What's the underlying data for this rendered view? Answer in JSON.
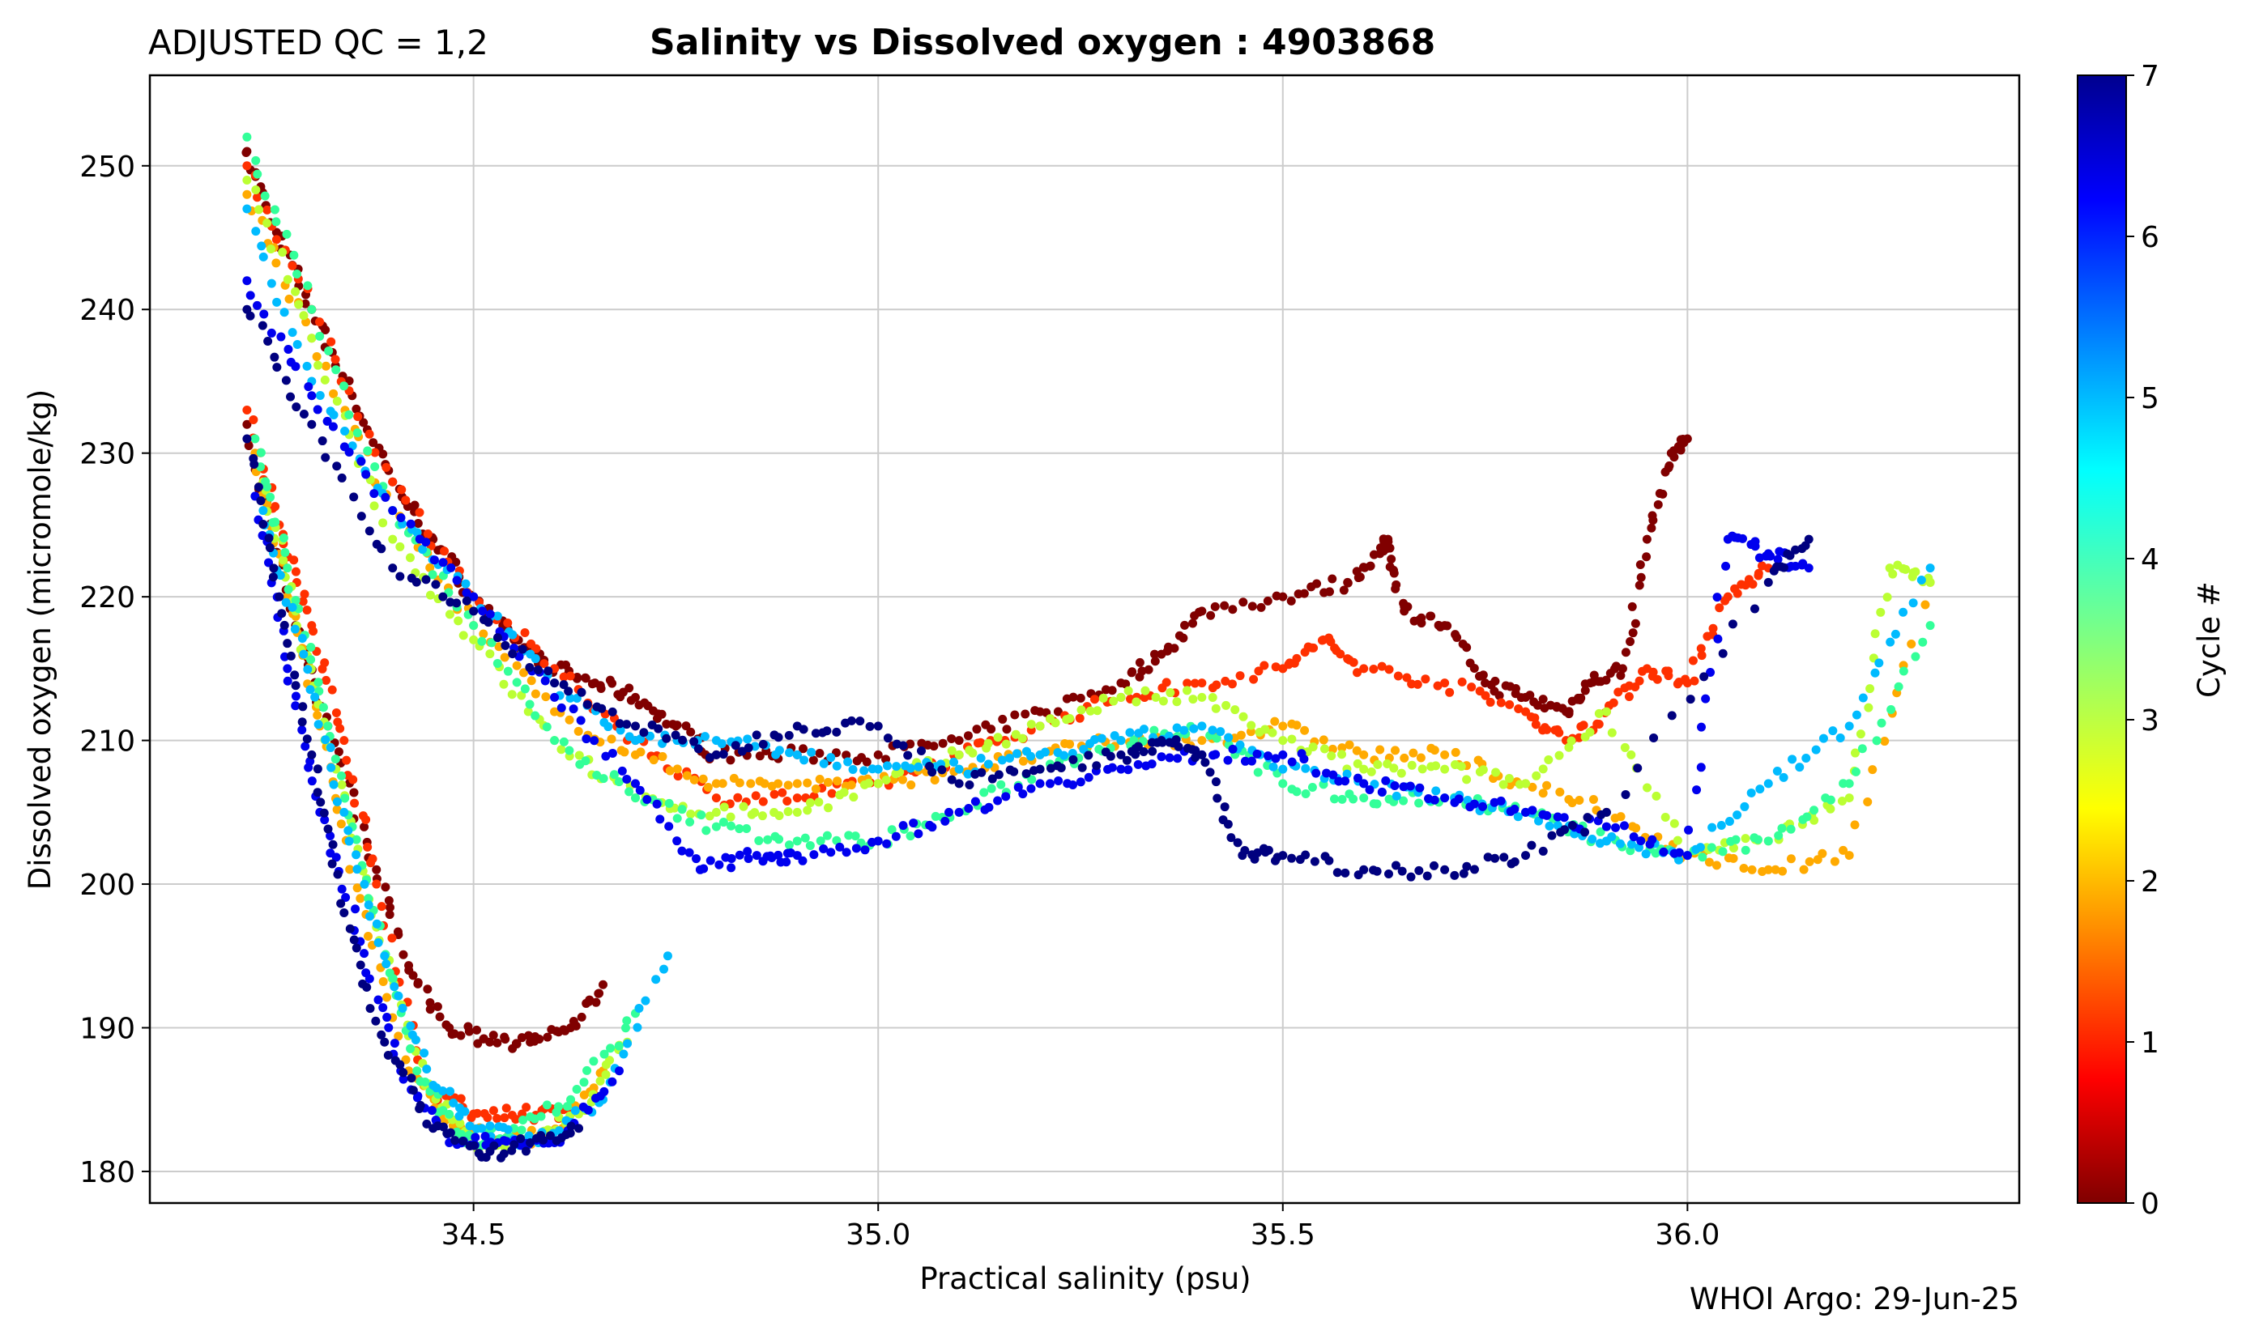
{
  "header": {
    "qc_label": "ADJUSTED QC = 1,2",
    "title": "Salinity vs Dissolved oxygen : 4903868"
  },
  "footer": {
    "credit": "WHOI Argo: 29-Jun-25"
  },
  "chart_data": {
    "type": "scatter",
    "title": "Salinity vs Dissolved oxygen : 4903868",
    "xlabel": "Practical salinity  (psu)",
    "ylabel": "Dissolved oxygen  (micromole/kg)",
    "xlim": [
      34.1,
      36.41
    ],
    "ylim": [
      177.8,
      256.3
    ],
    "xticks": [
      34.5,
      35.0,
      35.5,
      36.0
    ],
    "xtick_labels": [
      "34.5",
      "35.0",
      "35.5",
      "36.0"
    ],
    "yticks": [
      180,
      190,
      200,
      210,
      220,
      230,
      240,
      250
    ],
    "ytick_labels": [
      "180",
      "190",
      "200",
      "210",
      "220",
      "230",
      "240",
      "250"
    ],
    "grid": true,
    "colorbar": {
      "label": "Cycle #",
      "colormap": "jet (reversed)",
      "range": [
        0,
        7
      ],
      "ticks": [
        0,
        1,
        2,
        3,
        4,
        5,
        6,
        7
      ],
      "tick_labels": [
        "0",
        "1",
        "2",
        "3",
        "4",
        "5",
        "6",
        "7"
      ]
    },
    "series": [
      {
        "cycle": 0,
        "color": "#800000",
        "x": [
          34.22,
          34.25,
          34.3,
          34.35,
          34.4,
          34.45,
          34.5,
          34.55,
          34.6,
          34.65,
          34.7,
          34.75,
          34.8,
          34.9,
          35.0,
          35.1,
          35.2,
          35.3,
          35.35,
          35.4,
          35.5,
          35.58,
          35.62,
          35.63,
          35.65,
          35.7,
          35.75,
          35.8,
          35.85,
          35.88,
          35.92,
          35.95,
          35.98,
          36.0
        ],
        "y": [
          251,
          246,
          240,
          234,
          228,
          224,
          220,
          217,
          215,
          214,
          213,
          211,
          209,
          209,
          209,
          210,
          212,
          214,
          216,
          219,
          220,
          221,
          223,
          224,
          219,
          218,
          214,
          213,
          212,
          214,
          215,
          224,
          230,
          231
        ]
      },
      {
        "cycle": 1,
        "color": "#ff3000",
        "x": [
          34.22,
          34.3,
          34.4,
          34.5,
          34.6,
          34.7,
          34.8,
          34.9,
          35.0,
          35.1,
          35.2,
          35.3,
          35.4,
          35.5,
          35.55,
          35.6,
          35.7,
          35.8,
          35.85,
          35.9,
          35.95,
          36.0,
          36.05,
          36.1
        ],
        "y": [
          250,
          240,
          228,
          220,
          215,
          210,
          206,
          206,
          207,
          209,
          211,
          213,
          214,
          215,
          217,
          215,
          214,
          212,
          210,
          212,
          215,
          214,
          220,
          222
        ]
      },
      {
        "cycle": 2,
        "color": "#ffaa00",
        "x": [
          34.22,
          34.3,
          34.4,
          34.5,
          34.6,
          34.7,
          34.8,
          34.9,
          35.0,
          35.1,
          35.2,
          35.3,
          35.4,
          35.5,
          35.6,
          35.7,
          35.8,
          35.9,
          36.0,
          36.1,
          36.2,
          36.3
        ],
        "y": [
          248,
          238,
          226,
          218,
          212,
          209,
          207,
          207,
          207,
          208,
          209,
          210,
          210,
          211,
          209,
          209,
          207,
          205,
          202,
          201,
          202,
          221
        ]
      },
      {
        "cycle": 3,
        "color": "#bbff33",
        "x": [
          34.22,
          34.3,
          34.4,
          34.5,
          34.6,
          34.7,
          34.8,
          34.9,
          35.0,
          35.1,
          35.2,
          35.3,
          35.4,
          35.5,
          35.6,
          35.7,
          35.8,
          35.9,
          36.0,
          36.1,
          36.2,
          36.25,
          36.3
        ],
        "y": [
          249,
          238,
          224,
          217,
          210,
          206,
          205,
          205,
          207,
          209,
          211,
          213,
          213,
          210,
          208,
          208,
          207,
          212,
          202,
          203,
          206,
          222,
          221
        ]
      },
      {
        "cycle": 4,
        "color": "#33ff99",
        "x": [
          34.22,
          34.3,
          34.4,
          34.5,
          34.6,
          34.7,
          34.8,
          34.9,
          35.0,
          35.1,
          35.2,
          35.3,
          35.4,
          35.5,
          35.6,
          35.7,
          35.8,
          35.9,
          36.0,
          36.1,
          36.2,
          36.3
        ],
        "y": [
          252,
          240,
          226,
          218,
          210,
          206,
          204,
          203,
          203,
          205,
          208,
          210,
          211,
          207,
          206,
          206,
          205,
          203,
          202,
          203,
          207,
          218
        ]
      },
      {
        "cycle": 5,
        "color": "#00bbff",
        "x": [
          34.22,
          34.3,
          34.4,
          34.5,
          34.6,
          34.7,
          34.8,
          34.9,
          35.0,
          35.1,
          35.2,
          35.3,
          35.4,
          35.5,
          35.6,
          35.7,
          35.8,
          35.9,
          36.0,
          36.1,
          36.2,
          36.3
        ],
        "y": [
          247,
          235,
          226,
          220,
          214,
          210,
          210,
          209,
          208,
          208,
          209,
          210,
          211,
          208,
          207,
          206,
          205,
          203,
          202,
          207,
          211,
          222
        ]
      },
      {
        "cycle": 6,
        "color": "#0000ee",
        "x": [
          34.22,
          34.3,
          34.4,
          34.5,
          34.6,
          34.7,
          34.78,
          34.85,
          34.9,
          35.0,
          35.1,
          35.2,
          35.3,
          35.4,
          35.5,
          35.6,
          35.7,
          35.8,
          35.9,
          36.0,
          36.05,
          36.1,
          36.15
        ],
        "y": [
          242,
          234,
          226,
          220,
          213,
          207,
          201,
          202,
          202,
          203,
          205,
          207,
          208,
          209,
          209,
          207,
          206,
          205,
          204,
          202,
          224,
          223,
          222
        ]
      },
      {
        "cycle": 7,
        "color": "#00007f",
        "x": [
          34.22,
          34.3,
          34.4,
          34.5,
          34.6,
          34.7,
          34.8,
          34.9,
          35.0,
          35.1,
          35.2,
          35.3,
          35.35,
          35.4,
          35.45,
          35.5,
          35.6,
          35.7,
          35.8,
          35.9,
          36.1,
          36.15
        ],
        "y": [
          240,
          232,
          222,
          219,
          214,
          211,
          209,
          211,
          211,
          207,
          208,
          209,
          210,
          209,
          202,
          202,
          201,
          201,
          202,
          205,
          221,
          224
        ]
      },
      {
        "cycle": 0,
        "color": "#800000",
        "x": [
          34.22,
          34.28,
          34.32,
          34.38,
          34.42,
          34.47,
          34.52,
          34.57,
          34.62,
          34.66
        ],
        "y": [
          232,
          218,
          211,
          201,
          194,
          190,
          189,
          189,
          190,
          193
        ]
      },
      {
        "cycle": 1,
        "color": "#ff3000",
        "x": [
          34.22,
          34.26,
          34.3,
          34.34,
          34.38,
          34.44,
          34.5,
          34.56,
          34.62
        ],
        "y": [
          233,
          225,
          218,
          210,
          200,
          186,
          184,
          184,
          184
        ]
      },
      {
        "cycle": 2,
        "color": "#ffaa00",
        "x": [
          34.23,
          34.27,
          34.31,
          34.36,
          34.42,
          34.48,
          34.55,
          34.61,
          34.66
        ],
        "y": [
          230,
          220,
          211,
          199,
          187,
          183,
          182,
          183,
          187
        ]
      },
      {
        "cycle": 3,
        "color": "#bbff33",
        "x": [
          34.24,
          34.28,
          34.33,
          34.38,
          34.44,
          34.5,
          34.56,
          34.63,
          34.69
        ],
        "y": [
          228,
          219,
          208,
          197,
          186,
          182,
          182,
          184,
          189
        ]
      },
      {
        "cycle": 4,
        "color": "#33ff99",
        "x": [
          34.23,
          34.27,
          34.32,
          34.37,
          34.43,
          34.49,
          34.55,
          34.62,
          34.7
        ],
        "y": [
          231,
          222,
          211,
          199,
          187,
          182,
          183,
          185,
          191
        ]
      },
      {
        "cycle": 5,
        "color": "#00bbff",
        "x": [
          34.24,
          34.29,
          34.34,
          34.39,
          34.45,
          34.51,
          34.58,
          34.66,
          34.74
        ],
        "y": [
          226,
          216,
          205,
          195,
          186,
          183,
          182,
          185,
          195
        ]
      },
      {
        "cycle": 6,
        "color": "#0000ee",
        "x": [
          34.23,
          34.27,
          34.31,
          34.36,
          34.41,
          34.47,
          34.53,
          34.6,
          34.68
        ],
        "y": [
          227,
          215,
          205,
          196,
          187,
          182,
          182,
          182,
          187
        ]
      },
      {
        "cycle": 7,
        "color": "#00007f",
        "x": [
          34.22,
          34.26,
          34.3,
          34.34,
          34.39,
          34.45,
          34.51,
          34.57,
          34.63
        ],
        "y": [
          231,
          220,
          209,
          198,
          189,
          183,
          181,
          182,
          183
        ]
      }
    ]
  }
}
